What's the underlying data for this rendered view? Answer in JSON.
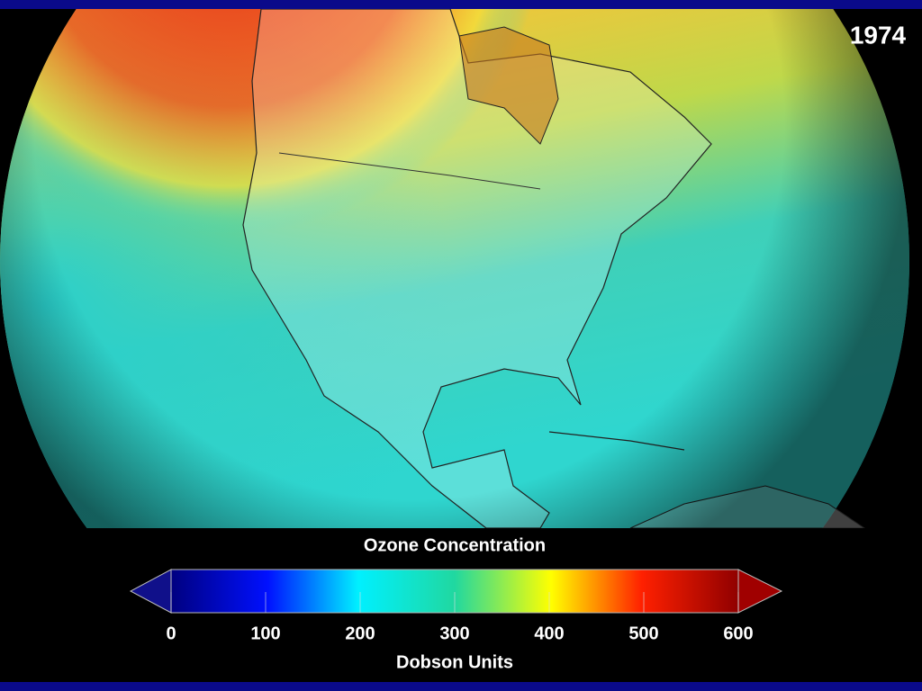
{
  "year": "1974",
  "colorbar": {
    "title": "Ozone Concentration",
    "lim": [
      0,
      600
    ],
    "ticks": [
      0,
      100,
      200,
      300,
      400,
      500,
      600
    ],
    "units": "Dobson Units"
  }
}
